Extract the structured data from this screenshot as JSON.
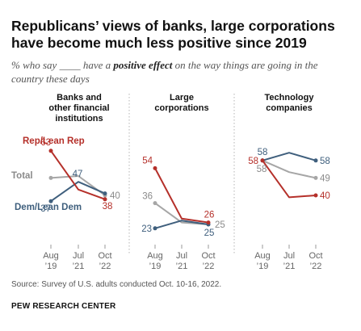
{
  "title": "Republicans’ views of banks, large corporations have become much less positive since 2019",
  "subtitle": {
    "before": "% who say ____ have a ",
    "emphasis": "positive effect",
    "after": " on the way things are going in the country these days"
  },
  "note": "Source: Survey of U.S. adults conducted Oct. 10-16, 2022.",
  "source_org": "PEW RESEARCH CENTER",
  "colors": {
    "rep": "#b5302a",
    "dem": "#3f5f7d",
    "total": "#a6a6a6"
  },
  "chart_data": {
    "type": "line",
    "x": [
      {
        "line1": "Aug",
        "line2": "’19"
      },
      {
        "line1": "Jul",
        "line2": "’21"
      },
      {
        "line1": "Oct",
        "line2": "’22"
      }
    ],
    "ylim": [
      15,
      70
    ],
    "series_labels": {
      "rep": "Rep/Lean Rep",
      "total": "Total",
      "dem": "Dem/Lean Dem"
    },
    "panels": [
      {
        "title_lines": [
          "Banks and",
          "other financial",
          "institutions"
        ],
        "series": [
          {
            "key": "rep",
            "values": [
              63,
              43,
              38
            ]
          },
          {
            "key": "total",
            "values": [
              49,
              50,
              40
            ]
          },
          {
            "key": "dem",
            "values": [
              37,
              47,
              41
            ]
          }
        ]
      },
      {
        "title_lines": [
          "Large",
          "corporations"
        ],
        "series": [
          {
            "key": "rep",
            "values": [
              54,
              28,
              26
            ]
          },
          {
            "key": "total",
            "values": [
              36,
              26,
              25
            ]
          },
          {
            "key": "dem",
            "values": [
              23,
              27,
              25
            ]
          }
        ]
      },
      {
        "title_lines": [
          "Technology",
          "companies"
        ],
        "series": [
          {
            "key": "rep",
            "values": [
              58,
              39,
              40
            ]
          },
          {
            "key": "total",
            "values": [
              58,
              52,
              49
            ]
          },
          {
            "key": "dem",
            "values": [
              58,
              62,
              58
            ]
          }
        ]
      }
    ]
  }
}
